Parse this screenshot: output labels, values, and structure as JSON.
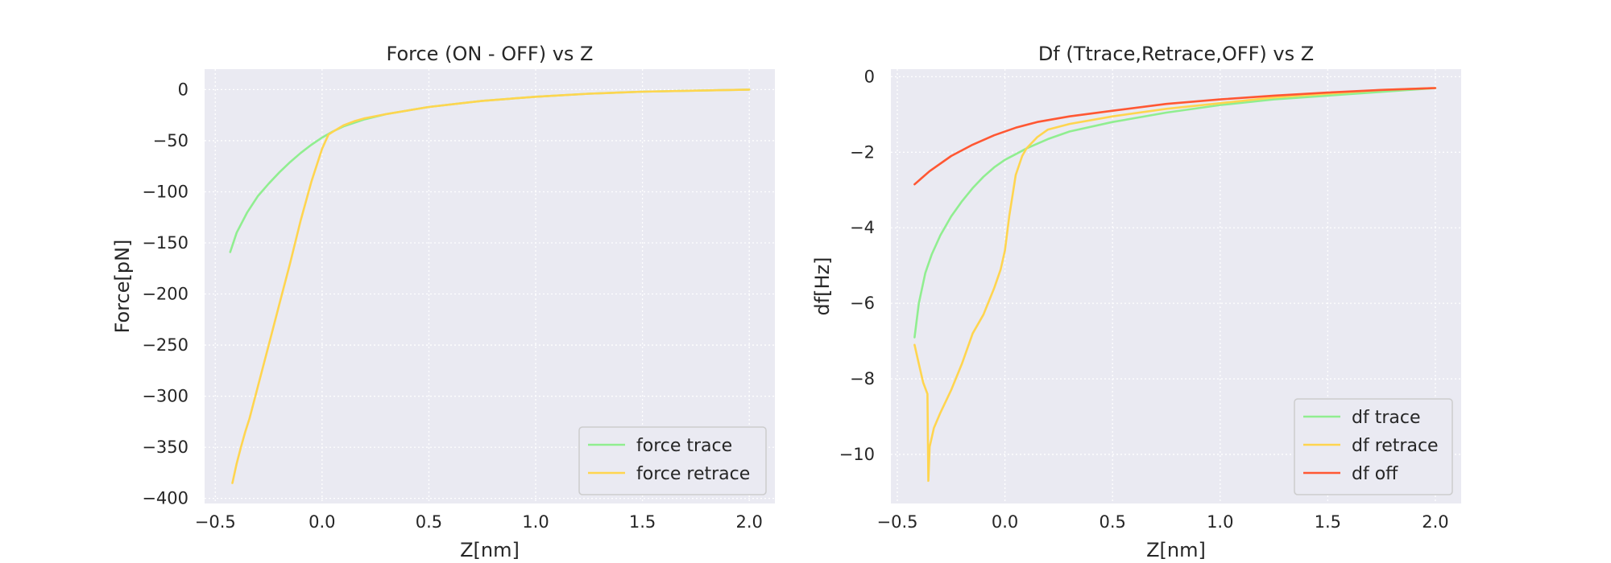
{
  "chart_data": [
    {
      "type": "line",
      "title": "Force (ON - OFF) vs Z",
      "xlabel": "Z[nm]",
      "ylabel": "Force[pN]",
      "xlim": [
        -0.55,
        2.12
      ],
      "ylim": [
        -405,
        20
      ],
      "xticks": [
        -0.5,
        0.0,
        0.5,
        1.0,
        1.5,
        2.0
      ],
      "xtick_labels": [
        "−0.5",
        "0.0",
        "0.5",
        "1.0",
        "1.5",
        "2.0"
      ],
      "yticks": [
        0,
        -50,
        -100,
        -150,
        -200,
        -250,
        -300,
        -350,
        -400
      ],
      "ytick_labels": [
        "0",
        "−50",
        "−100",
        "−150",
        "−200",
        "−250",
        "−300",
        "−350",
        "−400"
      ],
      "grid": true,
      "legend_position": "lower-right",
      "series": [
        {
          "name": "force trace",
          "color": "#90ee90",
          "x": [
            -0.43,
            -0.4,
            -0.35,
            -0.3,
            -0.25,
            -0.2,
            -0.15,
            -0.1,
            -0.05,
            0.0,
            0.05,
            0.1,
            0.2,
            0.3,
            0.5,
            0.75,
            1.0,
            1.25,
            1.5,
            1.75,
            2.0
          ],
          "y": [
            -159,
            -140,
            -120,
            -104,
            -92,
            -81,
            -71,
            -62,
            -54,
            -47,
            -41,
            -36,
            -29,
            -24,
            -17,
            -11,
            -7,
            -4,
            -2,
            -1,
            0
          ]
        },
        {
          "name": "force retrace",
          "color": "#ffd54f",
          "x": [
            -0.42,
            -0.4,
            -0.38,
            -0.36,
            -0.34,
            -0.3,
            -0.25,
            -0.2,
            -0.15,
            -0.1,
            -0.05,
            0.0,
            0.03,
            0.06,
            0.1,
            0.15,
            0.2,
            0.3,
            0.5,
            0.75,
            1.0,
            1.25,
            1.5,
            1.75,
            2.0
          ],
          "y": [
            -385,
            -366,
            -350,
            -335,
            -322,
            -290,
            -250,
            -210,
            -170,
            -128,
            -90,
            -58,
            -44,
            -40,
            -35,
            -31,
            -28,
            -24,
            -17,
            -11,
            -7,
            -4,
            -2,
            -1,
            0
          ]
        }
      ]
    },
    {
      "type": "line",
      "title": "Df (Ttrace,Retrace,OFF) vs Z",
      "xlabel": "Z[nm]",
      "ylabel": "df[Hz]",
      "xlim": [
        -0.53,
        2.12
      ],
      "ylim": [
        -11.3,
        0.2
      ],
      "xticks": [
        -0.5,
        0.0,
        0.5,
        1.0,
        1.5,
        2.0
      ],
      "xtick_labels": [
        "−0.5",
        "0.0",
        "0.5",
        "1.0",
        "1.5",
        "2.0"
      ],
      "yticks": [
        0,
        -2,
        -4,
        -6,
        -8,
        -10
      ],
      "ytick_labels": [
        "0",
        "−2",
        "−4",
        "−6",
        "−8",
        "−10"
      ],
      "grid": true,
      "legend_position": "lower-right",
      "series": [
        {
          "name": "df trace",
          "color": "#90ee90",
          "x": [
            -0.42,
            -0.4,
            -0.37,
            -0.34,
            -0.3,
            -0.25,
            -0.2,
            -0.15,
            -0.1,
            -0.05,
            0.0,
            0.05,
            0.1,
            0.2,
            0.3,
            0.5,
            0.75,
            1.0,
            1.25,
            1.5,
            1.75,
            2.0
          ],
          "y": [
            -6.9,
            -6.0,
            -5.2,
            -4.7,
            -4.2,
            -3.7,
            -3.3,
            -2.95,
            -2.65,
            -2.4,
            -2.2,
            -2.05,
            -1.9,
            -1.65,
            -1.45,
            -1.2,
            -0.95,
            -0.75,
            -0.6,
            -0.5,
            -0.4,
            -0.3
          ]
        },
        {
          "name": "df retrace",
          "color": "#ffd54f",
          "x": [
            -0.42,
            -0.4,
            -0.38,
            -0.36,
            -0.356,
            -0.35,
            -0.33,
            -0.3,
            -0.25,
            -0.2,
            -0.15,
            -0.1,
            -0.05,
            -0.02,
            0.0,
            0.02,
            0.05,
            0.08,
            0.1,
            0.15,
            0.2,
            0.3,
            0.5,
            0.75,
            1.0,
            1.25,
            1.5,
            1.75,
            2.0
          ],
          "y": [
            -7.1,
            -7.6,
            -8.1,
            -8.4,
            -10.7,
            -9.8,
            -9.3,
            -8.9,
            -8.3,
            -7.6,
            -6.8,
            -6.3,
            -5.6,
            -5.1,
            -4.6,
            -3.7,
            -2.6,
            -2.1,
            -1.9,
            -1.6,
            -1.4,
            -1.25,
            -1.05,
            -0.85,
            -0.7,
            -0.55,
            -0.45,
            -0.35,
            -0.3
          ]
        },
        {
          "name": "df off",
          "color": "#ff5733",
          "x": [
            -0.42,
            -0.35,
            -0.25,
            -0.15,
            -0.05,
            0.05,
            0.15,
            0.3,
            0.5,
            0.75,
            1.0,
            1.25,
            1.5,
            1.75,
            2.0
          ],
          "y": [
            -2.85,
            -2.5,
            -2.1,
            -1.8,
            -1.55,
            -1.35,
            -1.2,
            -1.05,
            -0.9,
            -0.72,
            -0.6,
            -0.5,
            -0.42,
            -0.35,
            -0.3
          ]
        }
      ]
    }
  ]
}
